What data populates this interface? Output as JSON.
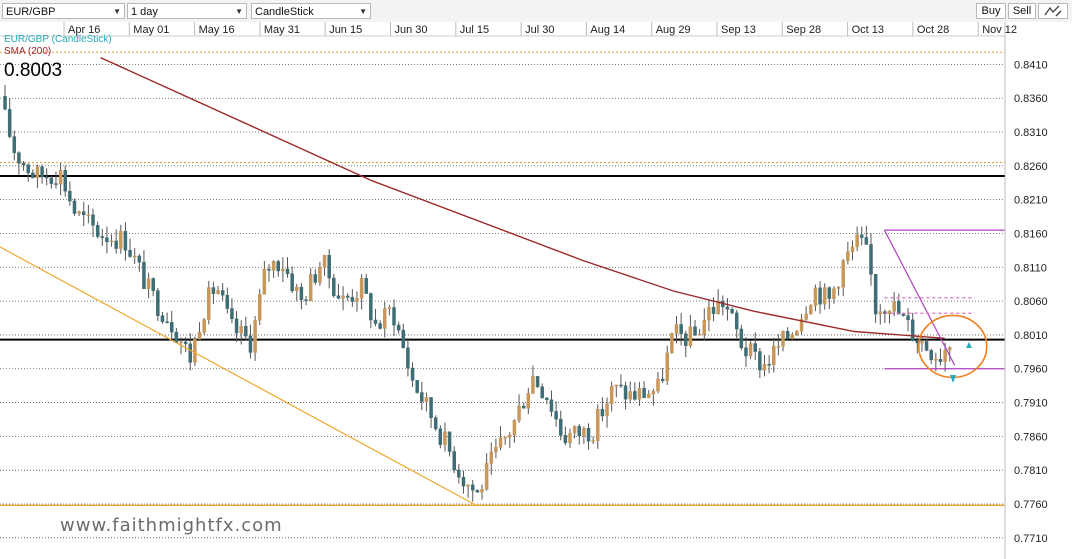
{
  "toolbar": {
    "symbol": "EUR/GBP",
    "interval": "1 day",
    "chart_style": "CandleStick",
    "buy_label": "Buy",
    "sell_label": "Sell",
    "draw_icon": "pencil-chart-icon"
  },
  "legend": {
    "instrument": "EUR/GBP (CandleStick)",
    "indicator": "SMA (200)",
    "last_price": "0.8003"
  },
  "watermark": "www.faithmightfx.com",
  "colors": {
    "bull": "#c8975a",
    "bear": "#3f6d75",
    "sma": "#9b2a2a",
    "trendline": "#f0a830",
    "fib": "#b040c0",
    "circle": "#f08020",
    "support": "#000000"
  },
  "chart_data": {
    "type": "candlestick",
    "x_labels": [
      "Apr 16",
      "May 01",
      "May 16",
      "May 31",
      "Jun 15",
      "Jun 30",
      "Jul 15",
      "Jul 30",
      "Aug 14",
      "Aug 29",
      "Sep 13",
      "Sep 28",
      "Oct 13",
      "Oct 28",
      "Nov 12"
    ],
    "y_ticks": [
      0.841,
      0.836,
      0.831,
      0.826,
      0.821,
      0.816,
      0.811,
      0.806,
      0.801,
      0.796,
      0.791,
      0.786,
      0.781,
      0.776,
      0.771
    ],
    "ylim": [
      0.7689,
      0.8452
    ],
    "series": [
      {
        "name": "EUR/GBP (CandleStick)",
        "kind": "candles"
      },
      {
        "name": "SMA (200)",
        "kind": "line",
        "points": [
          [
            0.1,
            0.842
          ],
          [
            0.37,
            0.8238
          ],
          [
            0.58,
            0.812
          ],
          [
            0.67,
            0.8075
          ],
          [
            0.75,
            0.8045
          ],
          [
            0.85,
            0.8015
          ],
          [
            0.94,
            0.8005
          ]
        ]
      }
    ],
    "path": [
      [
        0.0,
        0.8355
      ],
      [
        0.015,
        0.828
      ],
      [
        0.035,
        0.8245
      ],
      [
        0.06,
        0.825
      ],
      [
        0.075,
        0.819
      ],
      [
        0.1,
        0.816
      ],
      [
        0.125,
        0.815
      ],
      [
        0.15,
        0.807
      ],
      [
        0.17,
        0.803
      ],
      [
        0.19,
        0.7975
      ],
      [
        0.2,
        0.804
      ],
      [
        0.215,
        0.8085
      ],
      [
        0.23,
        0.802
      ],
      [
        0.25,
        0.8
      ],
      [
        0.265,
        0.811
      ],
      [
        0.28,
        0.812
      ],
      [
        0.3,
        0.806
      ],
      [
        0.32,
        0.812
      ],
      [
        0.34,
        0.806
      ],
      [
        0.36,
        0.808
      ],
      [
        0.375,
        0.802
      ],
      [
        0.39,
        0.805
      ],
      [
        0.41,
        0.7945
      ],
      [
        0.44,
        0.786
      ],
      [
        0.46,
        0.78
      ],
      [
        0.475,
        0.7775
      ],
      [
        0.49,
        0.7825
      ],
      [
        0.51,
        0.7875
      ],
      [
        0.53,
        0.795
      ],
      [
        0.545,
        0.792
      ],
      [
        0.56,
        0.786
      ],
      [
        0.59,
        0.787
      ],
      [
        0.61,
        0.793
      ],
      [
        0.63,
        0.792
      ],
      [
        0.655,
        0.793
      ],
      [
        0.67,
        0.801
      ],
      [
        0.69,
        0.8005
      ],
      [
        0.705,
        0.8045
      ],
      [
        0.72,
        0.806
      ],
      [
        0.74,
        0.799
      ],
      [
        0.76,
        0.7965
      ],
      [
        0.79,
        0.802
      ],
      [
        0.81,
        0.808
      ],
      [
        0.825,
        0.806
      ],
      [
        0.84,
        0.812
      ],
      [
        0.855,
        0.815
      ],
      [
        0.865,
        0.812
      ],
      [
        0.87,
        0.805
      ],
      [
        0.885,
        0.806
      ],
      [
        0.895,
        0.804
      ],
      [
        0.91,
        0.801
      ],
      [
        0.925,
        0.799
      ],
      [
        0.935,
        0.798
      ],
      [
        0.945,
        0.8003
      ]
    ],
    "horizontal_lines": [
      {
        "price": 0.8245,
        "style": "solid",
        "color": "#000000"
      },
      {
        "price": 0.8003,
        "style": "solid",
        "color": "#000000"
      },
      {
        "price": 0.7758,
        "style": "solid",
        "color": "#f0a830"
      },
      {
        "price": 0.8428,
        "style": "dotted",
        "color": "#d8a040"
      },
      {
        "price": 0.8265,
        "style": "dotted",
        "color": "#d8a040"
      }
    ],
    "annotation_lines": [
      {
        "from": [
          0.0,
          0.814
        ],
        "to": [
          0.475,
          0.7757
        ],
        "color": "#f0a830"
      },
      {
        "from": [
          0.475,
          0.7758
        ],
        "to": [
          1.0,
          0.7758
        ],
        "color": "#f0a830"
      },
      {
        "from": [
          0.88,
          0.8165
        ],
        "to": [
          0.95,
          0.7965
        ],
        "color": "#b040c0"
      },
      {
        "from": [
          0.88,
          0.8165
        ],
        "to": [
          1.0,
          0.8165
        ],
        "color": "#b040c0"
      },
      {
        "from": [
          0.88,
          0.796
        ],
        "to": [
          1.0,
          0.796
        ],
        "color": "#b040c0"
      },
      {
        "from": [
          0.88,
          0.8065
        ],
        "to": [
          0.97,
          0.8065
        ],
        "color": "#e070c0",
        "dash": true
      },
      {
        "from": [
          0.88,
          0.8042
        ],
        "to": [
          0.97,
          0.8042
        ],
        "color": "#e070c0",
        "dash": true
      }
    ],
    "grid": true,
    "legend_position": "top-left"
  }
}
